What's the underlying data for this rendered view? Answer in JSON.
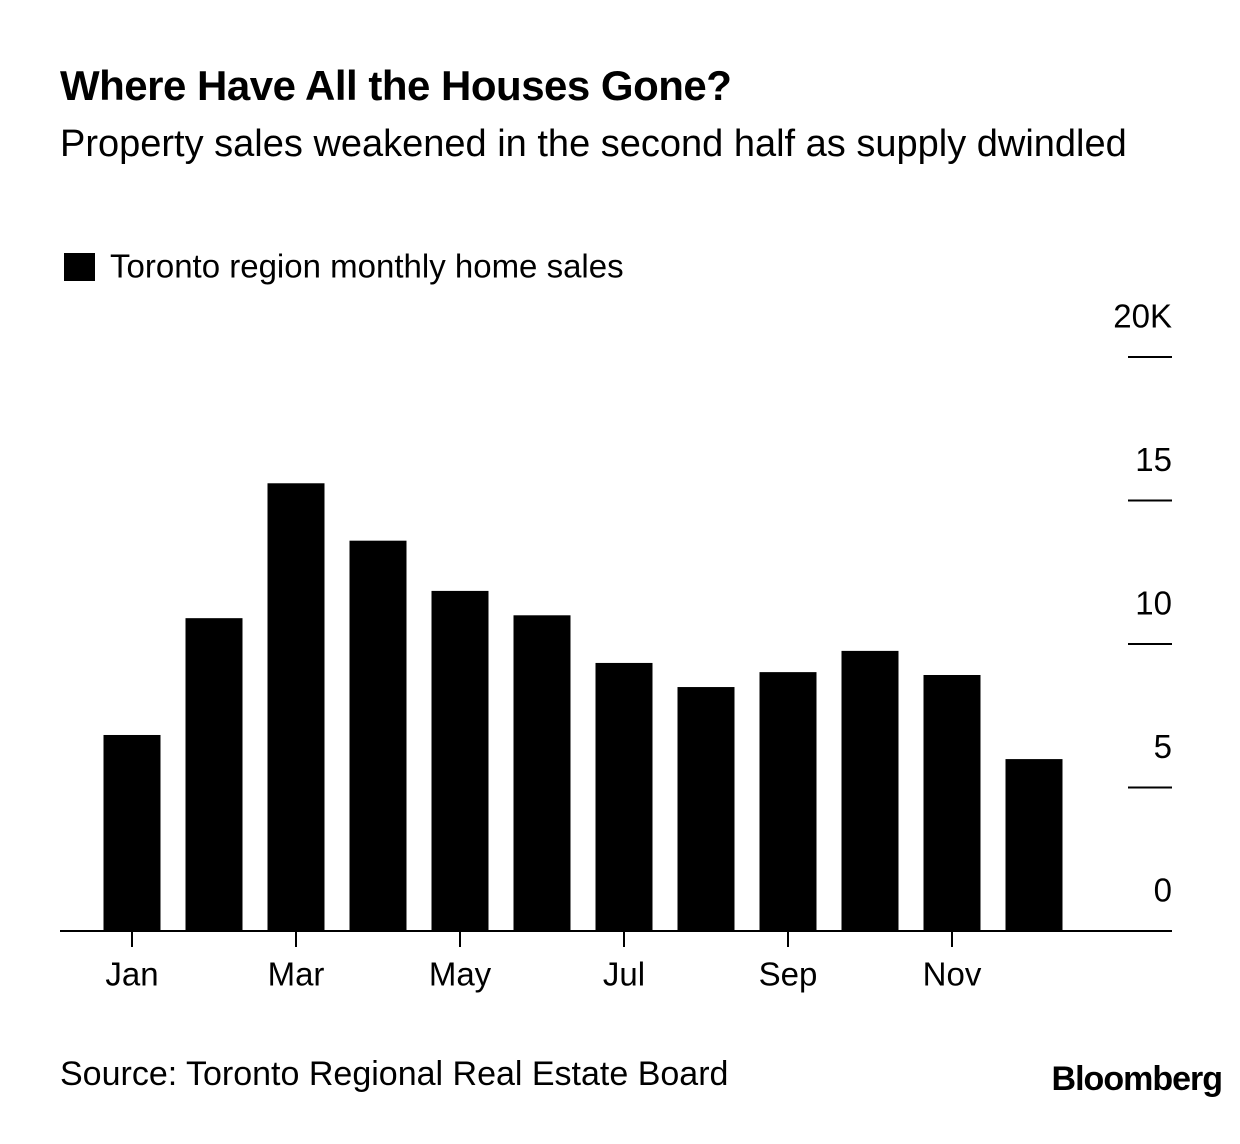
{
  "chart_data": {
    "type": "bar",
    "title": "Where Have All the Houses Gone?",
    "subtitle": "Property sales weakened in the second half as supply dwindled",
    "categories": [
      "Jan",
      null,
      "Mar",
      null,
      "May",
      null,
      "Jul",
      null,
      "Sep",
      null,
      "Nov",
      null
    ],
    "series": [
      {
        "name": "Toronto region monthly home sales",
        "color": "#000000",
        "values": [
          6.83,
          10.9,
          15.6,
          13.6,
          11.85,
          11.0,
          9.34,
          8.5,
          9.02,
          9.76,
          8.92,
          5.99
        ]
      }
    ],
    "ylim": [
      0,
      20
    ],
    "yticks": [
      0,
      5,
      10,
      15,
      {
        "value": 20,
        "label": "20K"
      }
    ],
    "y_axis_side": "right",
    "source": "Source: Toronto Regional Real Estate Board",
    "brand": "Bloomberg"
  }
}
